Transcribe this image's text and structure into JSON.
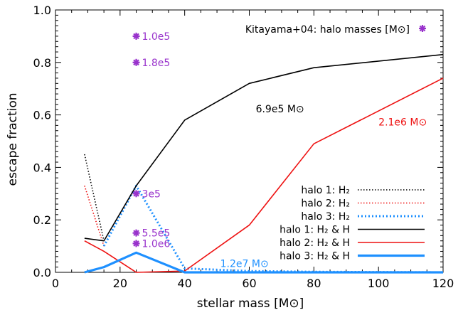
{
  "chart_data": {
    "type": "line",
    "xlabel": "stellar mass [M⊙]",
    "ylabel": "escape fraction",
    "xlim": [
      0,
      120
    ],
    "ylim": [
      0,
      1.0
    ],
    "x_ticks": [
      "0",
      "20",
      "40",
      "60",
      "80",
      "100",
      "120"
    ],
    "y_ticks": [
      "0.0",
      "0.2",
      "0.4",
      "0.6",
      "0.8",
      "1.0"
    ],
    "grid": false,
    "legend_position": "lower-right",
    "colors": {
      "halo1": "#000000",
      "halo2": "#ee1111",
      "halo3": "#1e90ff",
      "kitayama": "#9933cc"
    },
    "series": [
      {
        "name": "halo 1: H₂",
        "style": "dotted",
        "color": "#000000",
        "x": [
          9,
          15
        ],
        "y": [
          0.45,
          0.12
        ]
      },
      {
        "name": "halo 2: H₂",
        "style": "dotted",
        "color": "#ee1111",
        "x": [
          9,
          15
        ],
        "y": [
          0.33,
          0.1
        ]
      },
      {
        "name": "halo 3: H₂",
        "style": "dotted-thick",
        "color": "#1e90ff",
        "x": [
          15,
          25,
          40,
          60,
          80,
          120
        ],
        "y": [
          0.1,
          0.33,
          0.015,
          0.005,
          0.002,
          0.0
        ]
      },
      {
        "name": "halo 1: H₂ & H",
        "style": "solid",
        "color": "#000000",
        "x": [
          9,
          15,
          25,
          40,
          60,
          80,
          120
        ],
        "y": [
          0.13,
          0.12,
          0.33,
          0.58,
          0.72,
          0.78,
          0.83
        ]
      },
      {
        "name": "halo 2: H₂ & H",
        "style": "solid",
        "color": "#ee1111",
        "x": [
          9,
          15,
          25,
          40,
          60,
          80,
          120
        ],
        "y": [
          0.12,
          0.08,
          0.0,
          0.005,
          0.18,
          0.49,
          0.74
        ]
      },
      {
        "name": "halo 3: H₂ & H",
        "style": "solid-thick",
        "color": "#1e90ff",
        "x": [
          9,
          15,
          25,
          40,
          60,
          80,
          120
        ],
        "y": [
          0.0,
          0.02,
          0.075,
          0.0,
          0.0,
          0.0,
          0.0
        ]
      }
    ],
    "kitayama_points": [
      {
        "x": 25,
        "y": 0.9,
        "label": "1.0e5"
      },
      {
        "x": 25,
        "y": 0.8,
        "label": "1.8e5"
      },
      {
        "x": 25,
        "y": 0.3,
        "label": "3e5"
      },
      {
        "x": 25,
        "y": 0.15,
        "label": "5.5e5"
      },
      {
        "x": 25,
        "y": 0.11,
        "label": "1.0e6"
      }
    ],
    "annotations": [
      {
        "text": "6.9e5 M⊙",
        "color": "#000000",
        "x": 62,
        "y": 0.61
      },
      {
        "text": "2.1e6 M⊙",
        "color": "#ee1111",
        "x": 100,
        "y": 0.56
      },
      {
        "text": "1.2e7 M⊙",
        "color": "#1e90ff",
        "x": 51,
        "y": 0.02
      }
    ],
    "kitayama_label": "Kitayama+04: halo masses [M⊙]"
  }
}
